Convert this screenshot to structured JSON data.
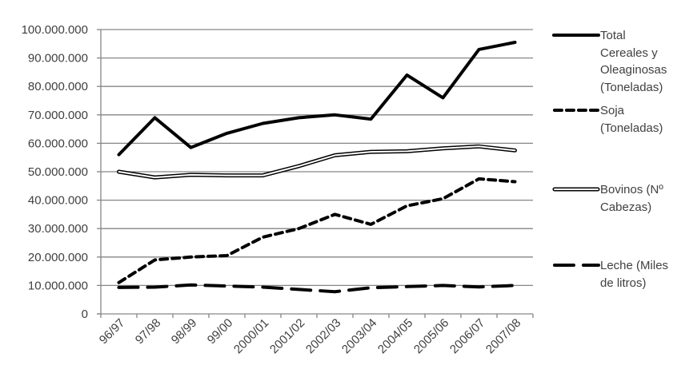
{
  "chart_data": {
    "type": "line",
    "title": "",
    "xlabel": "",
    "ylabel": "",
    "ylim": [
      0,
      100000000
    ],
    "yticks": [
      "0",
      "10.000.000",
      "20.000.000",
      "30.000.000",
      "40.000.000",
      "50.000.000",
      "60.000.000",
      "70.000.000",
      "80.000.000",
      "90.000.000",
      "100.000.000"
    ],
    "grid": true,
    "legend_position": "right",
    "categories": [
      "96/97",
      "97/98",
      "98/99",
      "99/00",
      "2000/01",
      "2001/02",
      "2002/03",
      "2003/04",
      "2004/05",
      "2005/06",
      "2006/07",
      "2007/08"
    ],
    "series": [
      {
        "name": "Total Cereales y Oleaginosas (Toneladas)",
        "style": "solid",
        "values": [
          56000000,
          69000000,
          58500000,
          63500000,
          67000000,
          69000000,
          70000000,
          68500000,
          84000000,
          76000000,
          93000000,
          95500000
        ]
      },
      {
        "name": "Soja (Toneladas)",
        "style": "short-dash",
        "values": [
          11000000,
          19000000,
          20000000,
          20500000,
          27000000,
          30000000,
          35000000,
          31500000,
          38000000,
          40500000,
          47500000,
          46500000
        ]
      },
      {
        "name": "Bovinos (Nº Cabezas)",
        "style": "double-line",
        "values": [
          50000000,
          48000000,
          48900000,
          48700000,
          48700000,
          52000000,
          55800000,
          57000000,
          57200000,
          58200000,
          58900000,
          57500000
        ]
      },
      {
        "name": "Leche (Miles de litros)",
        "style": "long-dash",
        "values": [
          9300000,
          9400000,
          10200000,
          9800000,
          9400000,
          8600000,
          7800000,
          9200000,
          9600000,
          10000000,
          9500000,
          10000000
        ]
      }
    ]
  },
  "legend": {
    "items": [
      {
        "label": "Total\nCereales y\nOleaginosas\n(Toneladas)"
      },
      {
        "label": "Soja\n(Toneladas)"
      },
      {
        "label": "Bovinos (Nº\nCabezas)"
      },
      {
        "label": "Leche (Miles\nde litros)"
      }
    ]
  },
  "colors": {
    "line": "#000000",
    "grid": "#868686",
    "axis": "#868686",
    "text": "#404040"
  }
}
